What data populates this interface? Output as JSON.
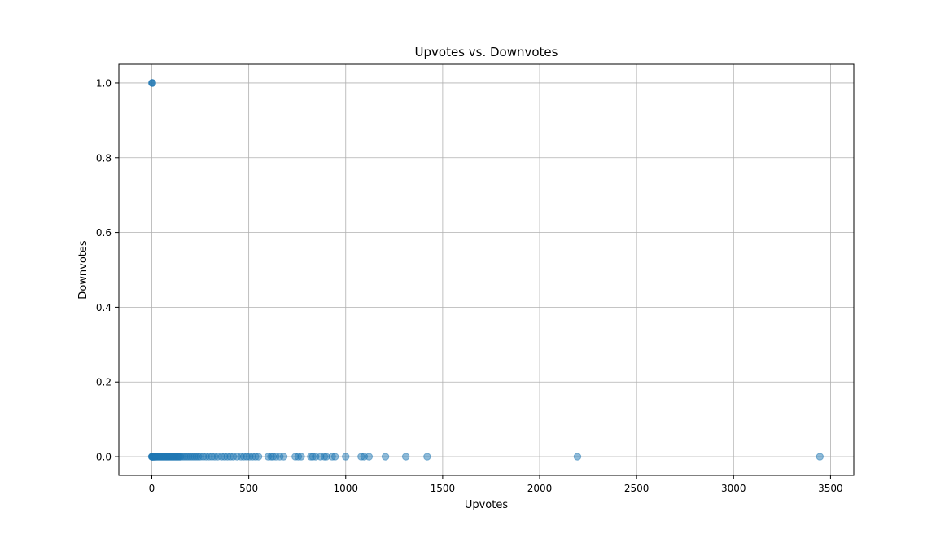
{
  "chart_data": {
    "type": "scatter",
    "title": "Upvotes vs. Downvotes",
    "xlabel": "Upvotes",
    "ylabel": "Downvotes",
    "xlim": [
      -170,
      3620
    ],
    "ylim": [
      -0.05,
      1.05
    ],
    "xticks": [
      0,
      500,
      1000,
      1500,
      2000,
      2500,
      3000,
      3500
    ],
    "xtick_labels": [
      "0",
      "500",
      "1000",
      "1500",
      "2000",
      "2500",
      "3000",
      "3500"
    ],
    "yticks": [
      0.0,
      0.2,
      0.4,
      0.6,
      0.8,
      1.0
    ],
    "ytick_labels": [
      "0.0",
      "0.2",
      "0.4",
      "0.6",
      "0.8",
      "1.0"
    ],
    "grid": true,
    "marker_color": "#1f77b4",
    "marker_alpha": 0.5,
    "series": [
      {
        "x": [
          0,
          1,
          2,
          3,
          5,
          7,
          10,
          12,
          15,
          18,
          20,
          25,
          30,
          35,
          40,
          45,
          50,
          55,
          60,
          65,
          70,
          75,
          80,
          85,
          90,
          95,
          100,
          105,
          110,
          115,
          120,
          125,
          130,
          135,
          140,
          145,
          150,
          160,
          170,
          180,
          190,
          200,
          210,
          220,
          230,
          240,
          250,
          265,
          280,
          295,
          310,
          325,
          340,
          360,
          375,
          390,
          405,
          420,
          440,
          460,
          475,
          490,
          505,
          520,
          535,
          550,
          600,
          615,
          625,
          640,
          660,
          680,
          740,
          755,
          770,
          820,
          830,
          845,
          870,
          890,
          900,
          930,
          945,
          1000,
          1080,
          1095,
          1120,
          1205,
          1310,
          1420,
          2195,
          3445,
          1,
          2,
          3
        ],
        "y": [
          0,
          0,
          0,
          0,
          0,
          0,
          0,
          0,
          0,
          0,
          0,
          0,
          0,
          0,
          0,
          0,
          0,
          0,
          0,
          0,
          0,
          0,
          0,
          0,
          0,
          0,
          0,
          0,
          0,
          0,
          0,
          0,
          0,
          0,
          0,
          0,
          0,
          0,
          0,
          0,
          0,
          0,
          0,
          0,
          0,
          0,
          0,
          0,
          0,
          0,
          0,
          0,
          0,
          0,
          0,
          0,
          0,
          0,
          0,
          0,
          0,
          0,
          0,
          0,
          0,
          0,
          0,
          0,
          0,
          0,
          0,
          0,
          0,
          0,
          0,
          0,
          0,
          0,
          0,
          0,
          0,
          0,
          0,
          0,
          0,
          0,
          0,
          0,
          0,
          0,
          0,
          0,
          1,
          1,
          1
        ]
      }
    ]
  }
}
